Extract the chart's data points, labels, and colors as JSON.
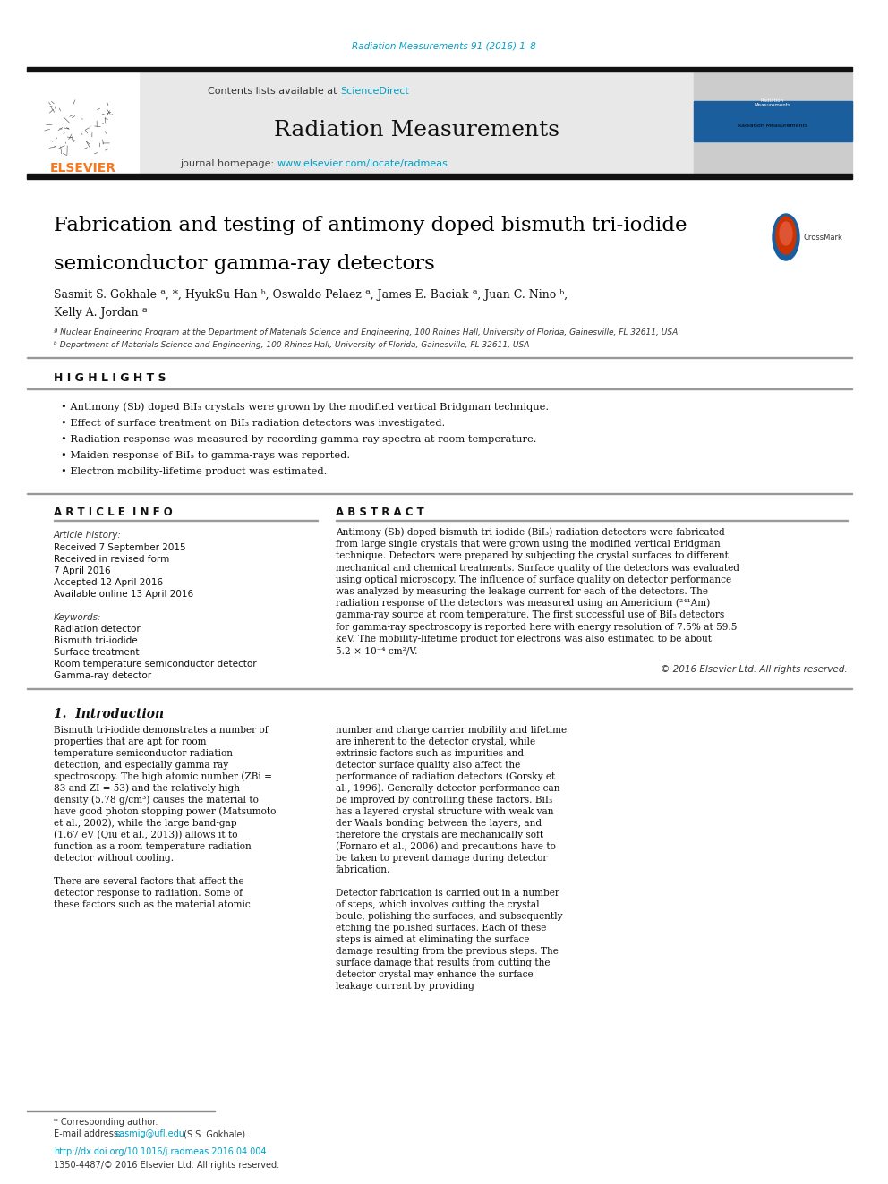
{
  "page_bg": "#ffffff",
  "top_journal_ref": "Radiation Measurements 91 (2016) 1–8",
  "top_journal_ref_color": "#00a0c6",
  "journal_name": "Radiation Measurements",
  "header_bg": "#e8e8e8",
  "contents_text": "Contents lists available at ",
  "sciencedirect_text": "ScienceDirect",
  "sciencedirect_color": "#00a0c6",
  "homepage_text": "journal homepage: ",
  "homepage_url": "www.elsevier.com/locate/radmeas",
  "homepage_url_color": "#00a0c6",
  "elsevier_color": "#f47920",
  "title_line1": "Fabrication and testing of antimony doped bismuth tri-iodide",
  "title_line2": "semiconductor gamma-ray detectors",
  "title_color": "#000000",
  "authors": "Sasmit S. Gokhale ª, *, HyukSu Han ᵇ, Oswaldo Pelaez ª, James E. Baciak ª, Juan C. Nino ᵇ,",
  "authors2": "Kelly A. Jordan ª",
  "affil_a": "ª Nuclear Engineering Program at the Department of Materials Science and Engineering, 100 Rhines Hall, University of Florida, Gainesville, FL 32611, USA",
  "affil_b": "ᵇ Department of Materials Science and Engineering, 100 Rhines Hall, University of Florida, Gainesville, FL 32611, USA",
  "highlights_title": "H I G H L I G H T S",
  "highlights": [
    "Antimony (Sb) doped BiI₃ crystals were grown by the modified vertical Bridgman technique.",
    "Effect of surface treatment on BiI₃ radiation detectors was investigated.",
    "Radiation response was measured by recording gamma-ray spectra at room temperature.",
    "Maiden response of BiI₃ to gamma-rays was reported.",
    "Electron mobility-lifetime product was estimated."
  ],
  "article_info_title": "A R T I C L E  I N F O",
  "abstract_title": "A B S T R A C T",
  "article_history_label": "Article history:",
  "article_history": [
    "Received 7 September 2015",
    "Received in revised form",
    "7 April 2016",
    "Accepted 12 April 2016",
    "Available online 13 April 2016"
  ],
  "keywords_label": "Keywords:",
  "keywords": [
    "Radiation detector",
    "Bismuth tri-iodide",
    "Surface treatment",
    "Room temperature semiconductor detector",
    "Gamma-ray detector"
  ],
  "abstract_text": "Antimony (Sb) doped bismuth tri-iodide (BiI₃) radiation detectors were fabricated from large single crystals that were grown using the modified vertical Bridgman technique. Detectors were prepared by subjecting the crystal surfaces to different mechanical and chemical treatments. Surface quality of the detectors was evaluated using optical microscopy. The influence of surface quality on detector performance was analyzed by measuring the leakage current for each of the detectors. The radiation response of the detectors was measured using an Americium (²⁴¹Am) gamma-ray source at room temperature. The first successful use of BiI₃ detectors for gamma-ray spectroscopy is reported here with energy resolution of 7.5% at 59.5 keV. The mobility-lifetime product for electrons was also estimated to be about 5.2 × 10⁻⁴ cm²/V.",
  "copyright_text": "© 2016 Elsevier Ltd. All rights reserved.",
  "intro_title": "1.  Introduction",
  "intro_col1": "Bismuth tri-iodide demonstrates a number of properties that are apt for room temperature semiconductor radiation detection, and especially gamma ray spectroscopy. The high atomic number (ZBi = 83 and ZI = 53) and the relatively high density (5.78 g/cm³) causes the material to have good photon stopping power (Matsumoto et al., 2002), while the large band-gap (1.67 eV (Qiu et al., 2013)) allows it to function as a room temperature radiation detector without cooling.\n   There are several factors that affect the detector response to radiation. Some of these factors such as the material atomic",
  "intro_col2": "number and charge carrier mobility and lifetime are inherent to the detector crystal, while extrinsic factors such as impurities and detector surface quality also affect the performance of radiation detectors (Gorsky et al., 1996). Generally detector performance can be improved by controlling these factors. BiI₃ has a layered crystal structure with weak van der Waals bonding between the layers, and therefore the crystals are mechanically soft (Fornaro et al., 2006) and precautions have to be taken to prevent damage during detector fabrication.\n   Detector fabrication is carried out in a number of steps, which involves cutting the crystal boule, polishing the surfaces, and subsequently etching the polished surfaces. Each of these steps is aimed at eliminating the surface damage resulting from the previous steps. The surface damage that results from cutting the detector crystal may enhance the surface leakage current by providing",
  "footnote_star": "* Corresponding author.",
  "footnote_email_label": "E-mail address: ",
  "footnote_email_link": "sasmig@ufl.edu",
  "footnote_email_rest": " (S.S. Gokhale).",
  "doi_text": "http://dx.doi.org/10.1016/j.radmeas.2016.04.004",
  "issn_text": "1350-4487/© 2016 Elsevier Ltd. All rights reserved.",
  "link_color": "#00a0c6"
}
